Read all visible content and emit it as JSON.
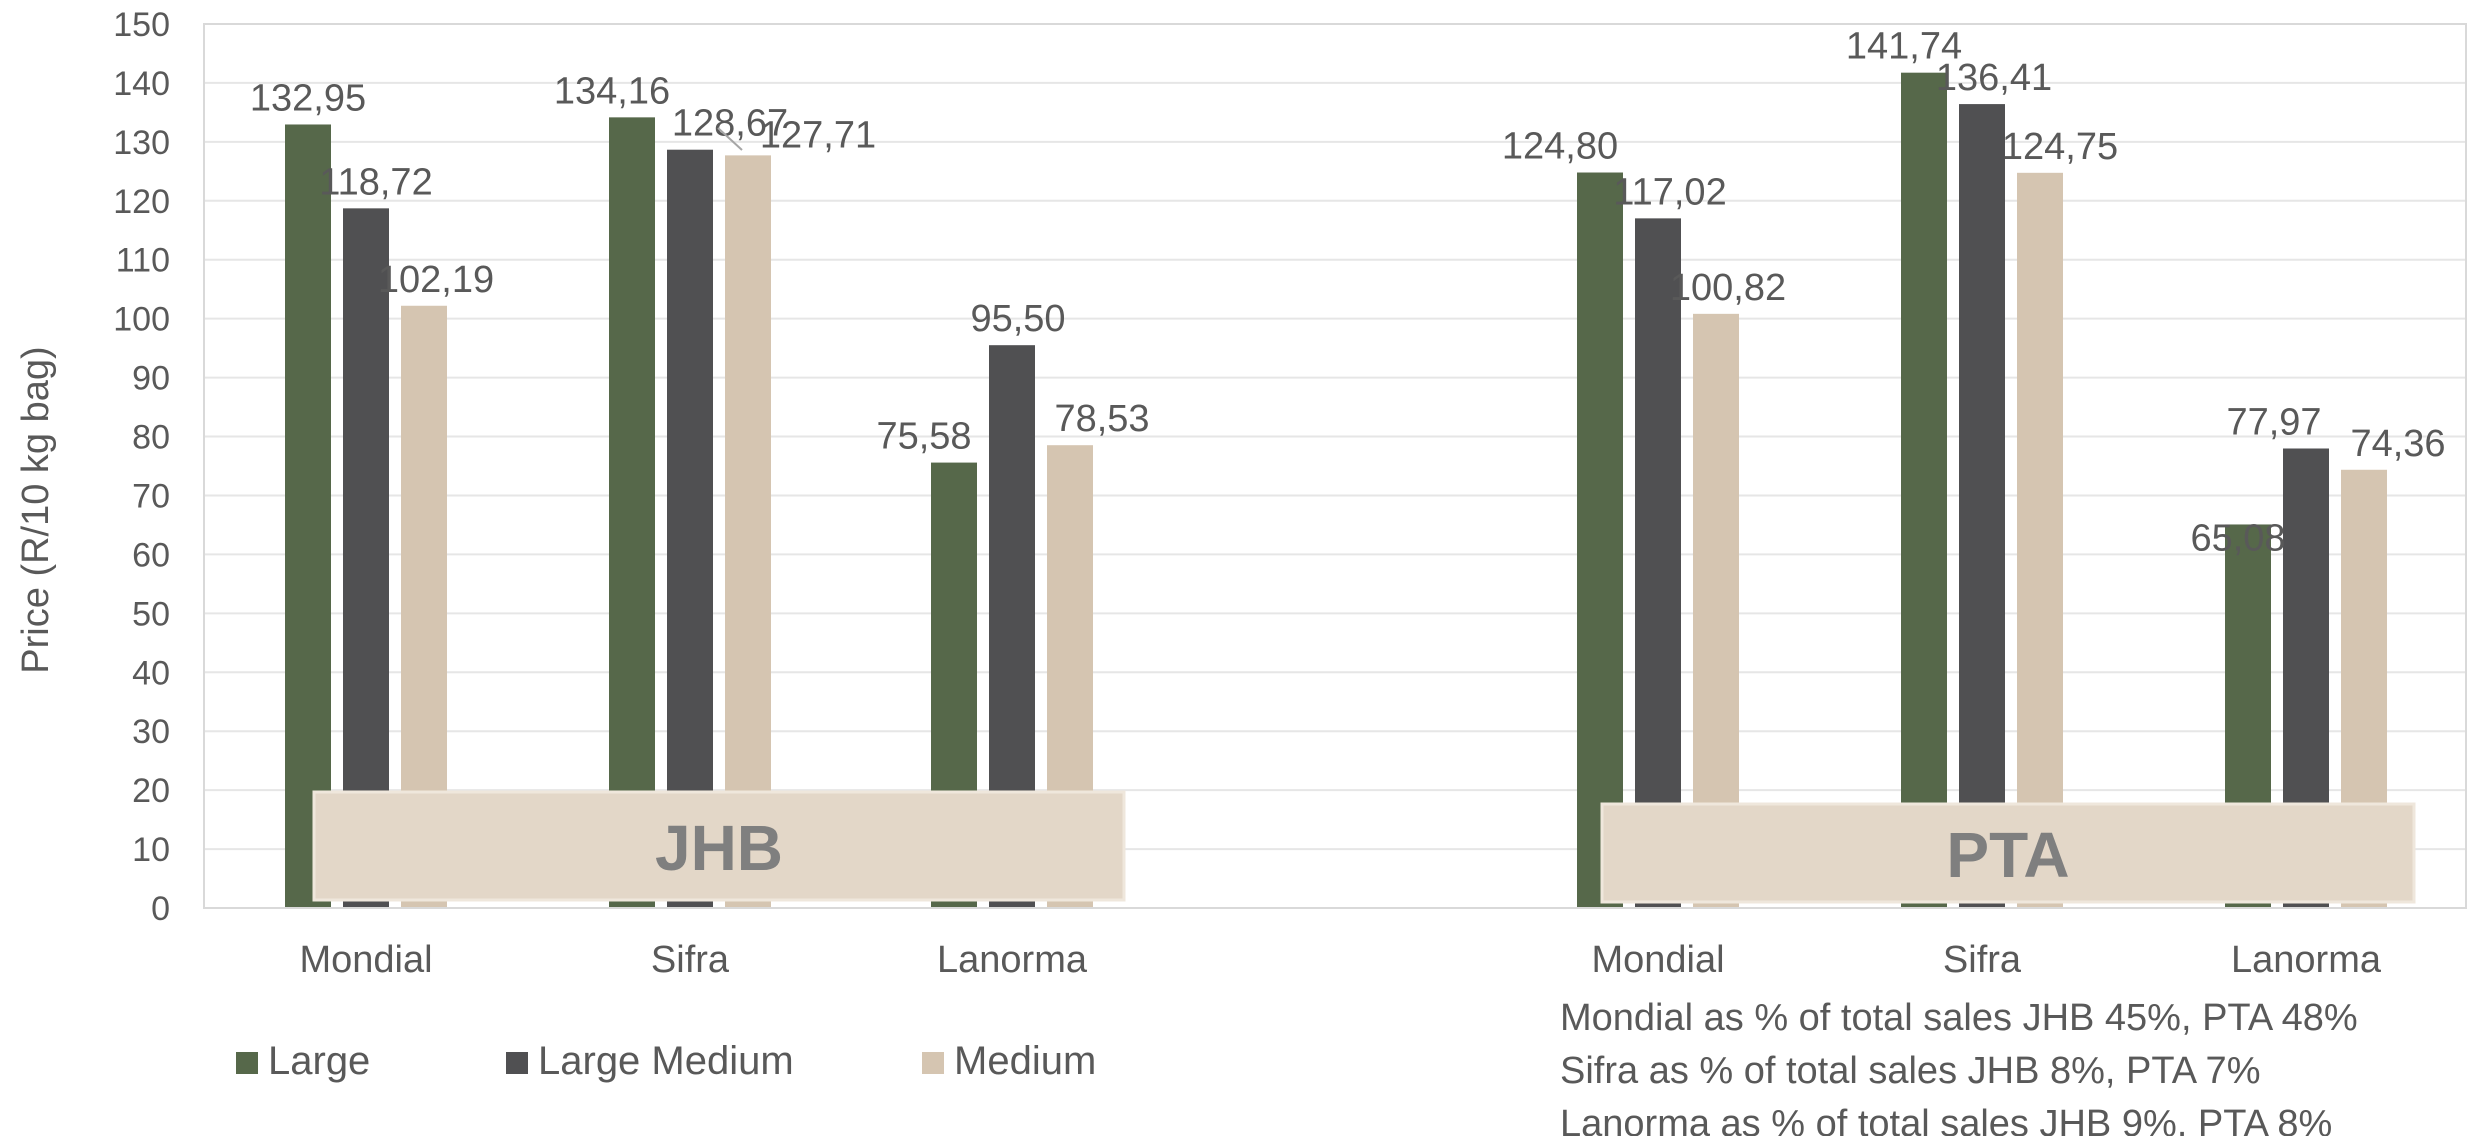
{
  "chart_data": {
    "type": "bar",
    "title": "",
    "xlabel": "",
    "ylabel": "Price (R/10 kg bag)",
    "ylim": [
      0,
      150
    ],
    "ytick_step": 10,
    "grid": true,
    "groups": [
      {
        "name": "JHB",
        "categories": [
          "Mondial",
          "Sifra",
          "Lanorma"
        ],
        "series": [
          {
            "name": "Large",
            "values": [
              132.95,
              134.16,
              75.58
            ],
            "labels": [
              "132,95",
              "134,16",
              "75,58"
            ]
          },
          {
            "name": "Large Medium",
            "values": [
              118.72,
              128.67,
              95.5
            ],
            "labels": [
              "118,72",
              "128,67",
              "95,50"
            ]
          },
          {
            "name": "Medium",
            "values": [
              102.19,
              127.71,
              78.53
            ],
            "labels": [
              "102,19",
              "127,71",
              "78,53"
            ]
          }
        ]
      },
      {
        "name": "PTA",
        "categories": [
          "Mondial",
          "Sifra",
          "Lanorma"
        ],
        "series": [
          {
            "name": "Large",
            "values": [
              124.8,
              141.74,
              65.08
            ],
            "labels": [
              "124,80",
              "141,74",
              "65,08"
            ]
          },
          {
            "name": "Large Medium",
            "values": [
              117.02,
              136.41,
              77.97
            ],
            "labels": [
              "117,02",
              "136,41",
              "77,97"
            ]
          },
          {
            "name": "Medium",
            "values": [
              100.82,
              124.75,
              74.36
            ],
            "labels": [
              "100,82",
              "124,75",
              "74,36"
            ]
          }
        ]
      }
    ],
    "legend": {
      "placement": "bottom-left",
      "entries": [
        "Large",
        "Large Medium",
        "Medium"
      ]
    },
    "colors": {
      "Large": "#56684a",
      "Large Medium": "#505052",
      "Medium": "#d5c5b1",
      "panel": "#e3d7c8",
      "grid": "#e6e6e6",
      "axis": "#d9d9d9",
      "text": "#595959"
    },
    "annotations": [
      "Mondial as % of total sales JHB 45%, PTA 48%",
      "Sifra as % of total sales JHB 8%, PTA 7%",
      "Lanorma as % of total sales JHB 9%, PTA 8%"
    ]
  }
}
